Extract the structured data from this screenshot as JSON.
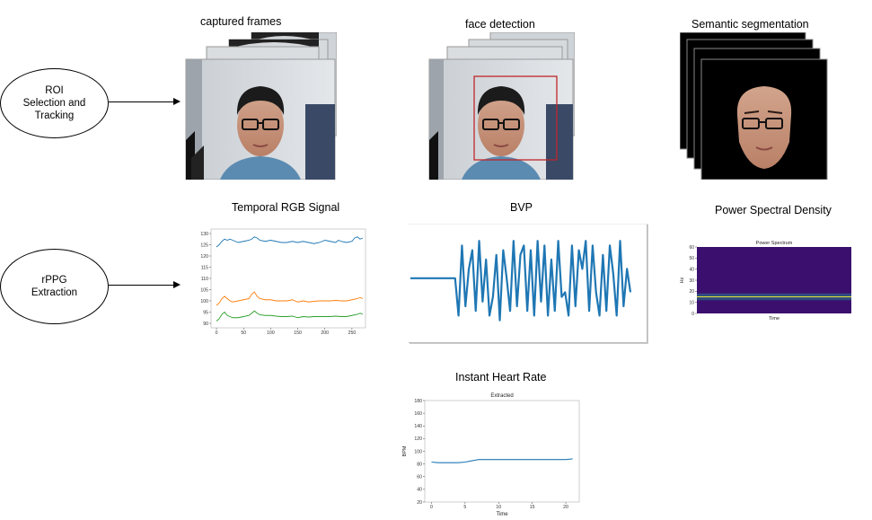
{
  "nodes": {
    "roi": {
      "lines": [
        "ROI",
        "Selection and",
        "Tracking"
      ]
    },
    "rppg": {
      "lines": [
        "rPPG",
        "Extraction"
      ]
    }
  },
  "captions": {
    "captured_frames": "captured frames",
    "face_detection": "face detection",
    "semantic_segmentation": "Semantic segmentation",
    "temporal_rgb": "Temporal RGB Signal",
    "bvp": "BVP",
    "psd": "Power Spectral Density",
    "instant_hr": "Instant Heart Rate"
  },
  "colors": {
    "blue": "#1f77b4",
    "orange": "#ff7f0e",
    "green": "#2ca02c",
    "spectrum_bg": "#3b0f6e",
    "detection_box": "#c0262b"
  },
  "chart_data": [
    {
      "id": "temporal_rgb",
      "type": "line",
      "title": "",
      "xlabel": "",
      "ylabel": "",
      "xlim": [
        -10,
        275
      ],
      "ylim": [
        88,
        132
      ],
      "xticks": [
        0,
        50,
        100,
        150,
        200,
        250
      ],
      "yticks": [
        90,
        95,
        100,
        105,
        110,
        115,
        120,
        125,
        130
      ],
      "series": [
        {
          "color": "blue",
          "x": [
            0,
            5,
            10,
            15,
            20,
            25,
            30,
            40,
            50,
            60,
            65,
            70,
            75,
            80,
            90,
            100,
            110,
            120,
            130,
            140,
            150,
            160,
            170,
            180,
            190,
            200,
            210,
            220,
            225,
            230,
            240,
            250,
            255,
            260,
            265,
            270
          ],
          "values": [
            124,
            125,
            126.5,
            127.5,
            127,
            127.5,
            127,
            126,
            126.5,
            127,
            127.5,
            128.5,
            128,
            127,
            126.5,
            127,
            126.5,
            126,
            126,
            126.5,
            126,
            126.5,
            126,
            125.5,
            126,
            127,
            126.5,
            126,
            127,
            126.5,
            126,
            126.5,
            128,
            128.5,
            127.5,
            128
          ]
        },
        {
          "color": "orange",
          "x": [
            0,
            5,
            10,
            15,
            20,
            25,
            30,
            40,
            50,
            60,
            65,
            70,
            75,
            80,
            90,
            100,
            110,
            120,
            130,
            140,
            150,
            160,
            170,
            180,
            190,
            200,
            210,
            220,
            230,
            240,
            250,
            260,
            265,
            270
          ],
          "values": [
            98,
            99,
            101,
            102,
            101,
            100,
            99.5,
            100,
            100.5,
            101,
            103,
            104,
            102,
            101,
            100.5,
            100.5,
            100,
            100,
            100,
            100.5,
            99.5,
            100,
            99.5,
            99.8,
            100,
            100,
            100,
            100.2,
            100,
            100,
            100.5,
            101,
            101.5,
            101
          ]
        },
        {
          "color": "green",
          "x": [
            0,
            5,
            10,
            15,
            20,
            25,
            30,
            40,
            50,
            60,
            65,
            70,
            75,
            80,
            90,
            100,
            110,
            120,
            130,
            140,
            150,
            160,
            170,
            180,
            190,
            200,
            210,
            220,
            230,
            240,
            250,
            260,
            265,
            270
          ],
          "values": [
            91,
            92,
            94,
            95,
            93.5,
            93,
            92.5,
            92.5,
            93,
            93.5,
            94.5,
            95.5,
            94.5,
            93.8,
            93.5,
            93.5,
            93.2,
            93,
            93,
            93.2,
            92.5,
            93,
            92.8,
            93,
            93,
            93,
            93,
            93.2,
            93,
            93,
            93.5,
            94,
            94.5,
            94
          ]
        }
      ]
    },
    {
      "id": "bvp",
      "type": "line",
      "title": "",
      "series": [
        {
          "color": "blue",
          "values": [
            0.1,
            0.1,
            0.1,
            0.1,
            0.1,
            0.1,
            0.1,
            0.1,
            0.1,
            0.1,
            0.1,
            0.1,
            0.1,
            0.1,
            -0.7,
            0.8,
            -0.5,
            0.3,
            0.7,
            -0.6,
            0.9,
            -0.4,
            0.5,
            -0.7,
            -0.3,
            0.6,
            -0.8,
            0.7,
            0.1,
            -0.6,
            0.9,
            -0.5,
            0.6,
            0.8,
            -0.6,
            0.7,
            -0.7,
            0.9,
            -0.4,
            0.8,
            -0.7,
            0.5,
            -0.6,
            0.9,
            -0.3,
            -0.2,
            -0.7,
            0.8,
            -0.5,
            0.7,
            0.3,
            0.9,
            -0.6,
            0.8,
            -0.2,
            -0.7,
            0.6,
            -0.6,
            0.8,
            0.2,
            -0.7,
            0.9,
            -0.5,
            0.3,
            -0.2
          ]
        }
      ]
    },
    {
      "id": "psd",
      "type": "heatmap",
      "title": "Power Spectrum",
      "xlabel": "Time",
      "ylabel": "Hz",
      "ylim": [
        0,
        60
      ],
      "yticks": [
        0,
        10,
        20,
        30,
        40,
        50,
        60
      ],
      "peak_band_hz": [
        14,
        16
      ]
    },
    {
      "id": "instant_hr",
      "type": "line",
      "title": "Extracted",
      "xlabel": "Time",
      "ylabel": "BPM",
      "xlim": [
        -1,
        22
      ],
      "ylim": [
        20,
        180
      ],
      "xticks": [
        0,
        5,
        10,
        15,
        20
      ],
      "yticks": [
        20,
        40,
        60,
        80,
        100,
        120,
        140,
        160,
        180
      ],
      "series": [
        {
          "color": "blue",
          "x": [
            0,
            1,
            2,
            3,
            4,
            5,
            6,
            6.5,
            7,
            8,
            10,
            12,
            14,
            16,
            18,
            20,
            21
          ],
          "values": [
            83,
            82,
            82,
            82,
            82,
            83,
            85,
            86,
            87,
            87,
            87,
            87,
            87,
            87,
            87,
            87,
            88
          ]
        }
      ]
    }
  ]
}
